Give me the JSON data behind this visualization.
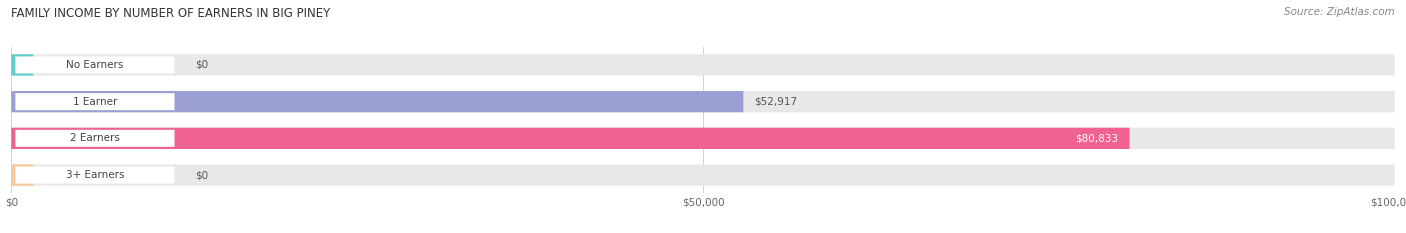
{
  "title": "FAMILY INCOME BY NUMBER OF EARNERS IN BIG PINEY",
  "source": "Source: ZipAtlas.com",
  "categories": [
    "No Earners",
    "1 Earner",
    "2 Earners",
    "3+ Earners"
  ],
  "values": [
    0,
    52917,
    80833,
    0
  ],
  "bar_colors": [
    "#5ecfca",
    "#9b9fd4",
    "#f06292",
    "#f7c99a"
  ],
  "value_inside": [
    false,
    false,
    true,
    false
  ],
  "xlim": [
    0,
    100000
  ],
  "xticks": [
    0,
    50000,
    100000
  ],
  "xtick_labels": [
    "$0",
    "$50,000",
    "$100,000"
  ],
  "bar_bg_color": "#e8e8e8",
  "bar_height": 0.58,
  "figsize": [
    14.06,
    2.33
  ],
  "dpi": 100
}
